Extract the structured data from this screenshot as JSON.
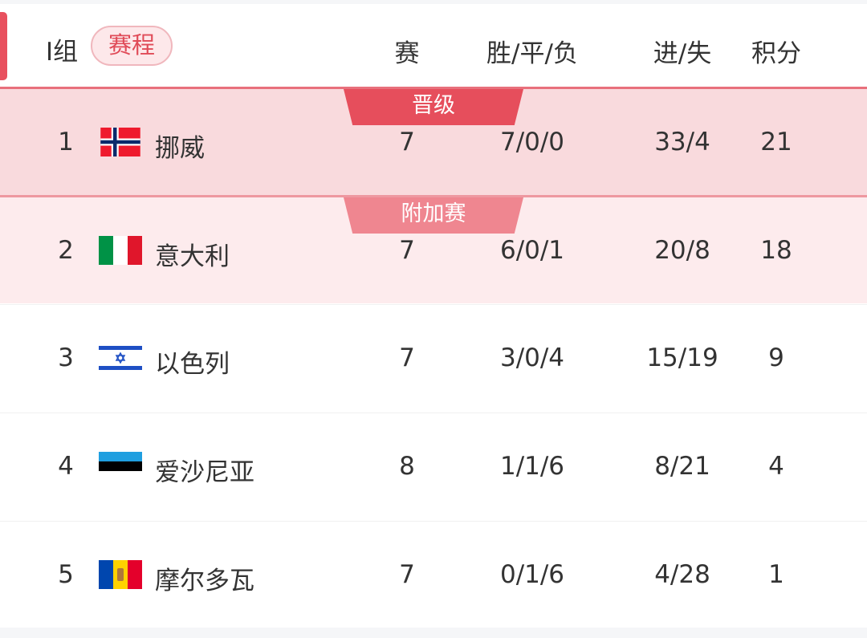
{
  "header": {
    "group": "I组",
    "schedule_button": "赛程",
    "cols": {
      "played": "赛",
      "wdl": "胜/平/负",
      "goals": "进/失",
      "points": "积分"
    }
  },
  "colors": {
    "promoted_bg": "#f9dadd",
    "promoted_badge": "#e64e5c",
    "playoff_bg": "#fdebed",
    "playoff_badge": "#ef8690",
    "accent": "#e8505e"
  },
  "rows": [
    {
      "rank": "1",
      "flag": "norway-flag",
      "team": "挪威",
      "played": "7",
      "wdl": "7/0/0",
      "goals": "33/4",
      "points": "21",
      "badge": "晋级"
    },
    {
      "rank": "2",
      "flag": "italy-flag",
      "team": "意大利",
      "played": "7",
      "wdl": "6/0/1",
      "goals": "20/8",
      "points": "18",
      "badge": "附加赛"
    },
    {
      "rank": "3",
      "flag": "israel-flag",
      "team": "以色列",
      "played": "7",
      "wdl": "3/0/4",
      "goals": "15/19",
      "points": "9"
    },
    {
      "rank": "4",
      "flag": "estonia-flag",
      "team": "爱沙尼亚",
      "played": "8",
      "wdl": "1/1/6",
      "goals": "8/21",
      "points": "4"
    },
    {
      "rank": "5",
      "flag": "moldova-flag",
      "team": "摩尔多瓦",
      "played": "7",
      "wdl": "0/1/6",
      "goals": "4/28",
      "points": "1"
    }
  ]
}
